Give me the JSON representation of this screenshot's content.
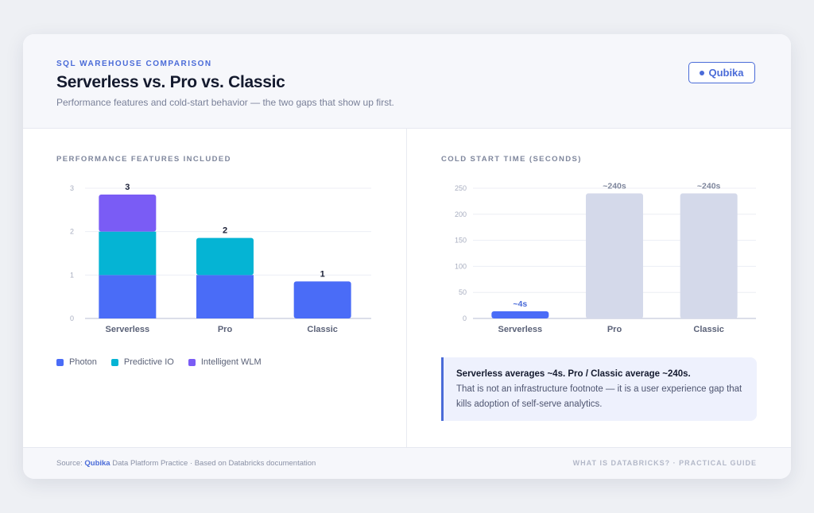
{
  "header": {
    "eyebrow": "SQL WAREHOUSE COMPARISON",
    "title": "Serverless vs. Pro vs. Classic",
    "subtitle": "Performance features and cold-start behavior — the two gaps that show up first.",
    "brand": "Qubika"
  },
  "colors": {
    "accent": "#4a6bd8",
    "photon": "#4a6cf7",
    "predictive_io": "#05b4d4",
    "intelligent_wlm": "#7a5cf5",
    "serverless_bar": "#4a6cf7",
    "other_bar": "#d4d9ea"
  },
  "chart_data": [
    {
      "type": "bar",
      "stacked": true,
      "title": "PERFORMANCE FEATURES INCLUDED",
      "categories": [
        "Serverless",
        "Pro",
        "Classic"
      ],
      "series": [
        {
          "name": "Photon",
          "values": [
            1,
            1,
            1
          ]
        },
        {
          "name": "Predictive IO",
          "values": [
            1,
            1,
            0
          ]
        },
        {
          "name": "Intelligent WLM",
          "values": [
            1,
            0,
            0
          ]
        }
      ],
      "totals": [
        "3",
        "2",
        "1"
      ],
      "ylim": [
        0,
        3
      ],
      "yticks": [
        "0",
        "1",
        "2",
        "3"
      ],
      "grid": true,
      "legend": "bottom-left"
    },
    {
      "type": "bar",
      "title": "COLD START TIME (SECONDS)",
      "categories": [
        "Serverless",
        "Pro",
        "Classic"
      ],
      "values": [
        4,
        240,
        240
      ],
      "data_labels": [
        "~4s",
        "~240s",
        "~240s"
      ],
      "ylim": [
        0,
        250
      ],
      "yticks": [
        "0",
        "50",
        "100",
        "150",
        "200",
        "250"
      ],
      "grid": true
    }
  ],
  "callout": {
    "headline": "Serverless averages ~4s. Pro / Classic average ~240s.",
    "body": "That is not an infrastructure footnote — it is a user experience gap that kills adoption of self-serve analytics."
  },
  "footer": {
    "source_prefix": "Source: ",
    "source_brand": "Qubika",
    "source_suffix": " Data Platform Practice · Based on Databricks documentation",
    "right": "WHAT IS DATABRICKS? · PRACTICAL GUIDE"
  }
}
